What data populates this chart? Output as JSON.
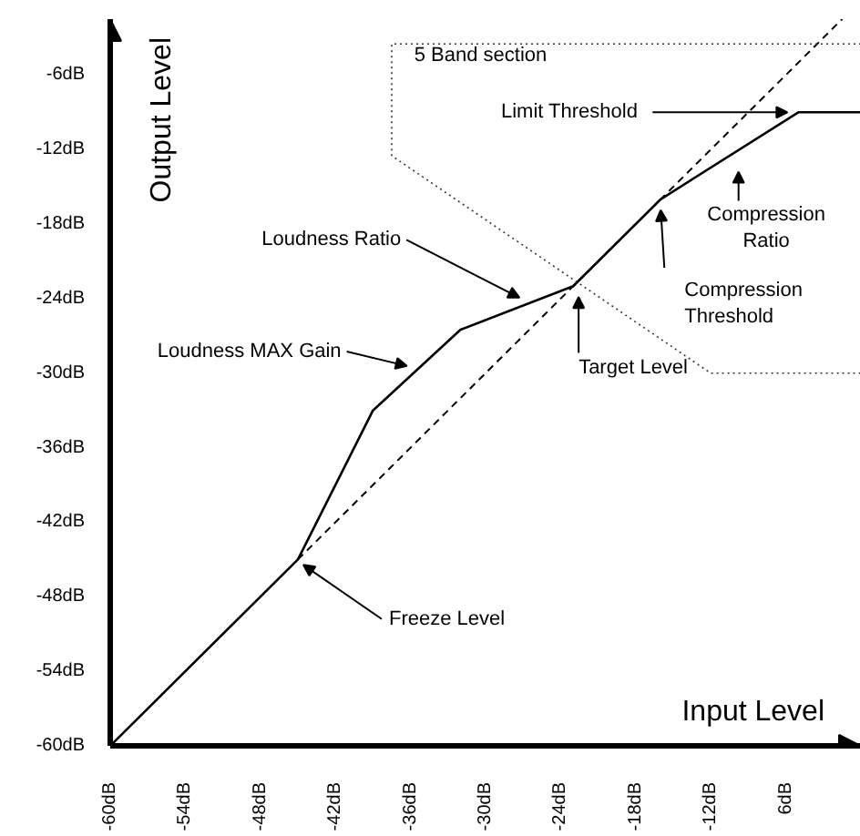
{
  "chart_data": {
    "type": "line",
    "xlabel": "Input Level",
    "ylabel": "Output Level",
    "xlim": [
      -60,
      0
    ],
    "ylim": [
      -60,
      -1.5
    ],
    "xticks": [
      {
        "value": -60,
        "label": "-60dB"
      },
      {
        "value": -54,
        "label": "-54dB"
      },
      {
        "value": -48,
        "label": "-48dB"
      },
      {
        "value": -42,
        "label": "-42dB"
      },
      {
        "value": -36,
        "label": "-36dB"
      },
      {
        "value": -30,
        "label": "-30dB"
      },
      {
        "value": -24,
        "label": "-24dB"
      },
      {
        "value": -18,
        "label": "-18dB"
      },
      {
        "value": -12,
        "label": "-12dB"
      },
      {
        "value": -6,
        "label": "6dB"
      }
    ],
    "yticks": [
      {
        "value": -60,
        "label": "-60dB"
      },
      {
        "value": -54,
        "label": "-54dB"
      },
      {
        "value": -48,
        "label": "-48dB"
      },
      {
        "value": -42,
        "label": "-42dB"
      },
      {
        "value": -36,
        "label": "-36dB"
      },
      {
        "value": -30,
        "label": "-30dB"
      },
      {
        "value": -24,
        "label": "-24dB"
      },
      {
        "value": -18,
        "label": "-18dB"
      },
      {
        "value": -12,
        "label": "-12dB"
      },
      {
        "value": -6,
        "label": "-6dB"
      }
    ],
    "grid": false,
    "marker": "none",
    "series": [
      {
        "color": "#000000",
        "line_style": "solid",
        "x": [
          -60,
          -45,
          -39,
          -32,
          -23,
          -16,
          -5,
          0
        ],
        "values": [
          -60,
          -45,
          -33,
          -26.5,
          -23,
          -16,
          -9,
          -9
        ]
      },
      {
        "color": "#000000",
        "line_style": "dashed",
        "x": [
          -45,
          -1.5
        ],
        "values": [
          -45,
          -1.5
        ]
      },
      {
        "color": "#333333",
        "line_style": "dotted",
        "x": [
          0,
          -37.5,
          -37.5,
          -12,
          0
        ],
        "values": [
          -3.5,
          -3.5,
          -12.5,
          -30,
          -30
        ]
      }
    ],
    "annotations": [
      "5 Band section",
      {
        "text": "Limit Threshold",
        "x": -5,
        "y": -9
      },
      "Compression\nRatio",
      {
        "text": "Compression\nThreshold",
        "x": -16,
        "y": -16
      },
      {
        "text": "Target Level",
        "x": -23,
        "y": -23
      },
      {
        "text": "Loudness Ratio",
        "x": -27,
        "y": -24.5
      },
      {
        "text": "Loudness MAX Gain",
        "x": -36,
        "y": -30
      },
      {
        "text": "Freeze Level",
        "x": -45,
        "y": -45
      }
    ]
  }
}
